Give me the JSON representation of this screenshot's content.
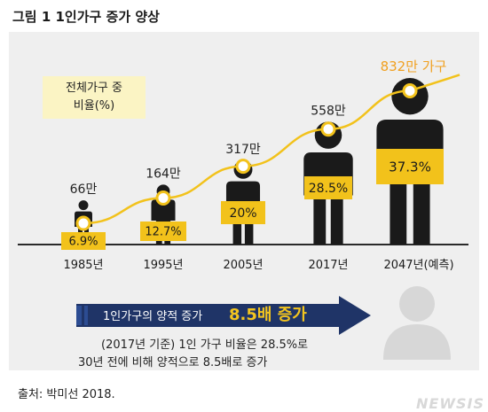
{
  "figure_title": "그림 1  1인가구 증가 양상",
  "legend_label": [
    "전체가구 중",
    "비율(%)"
  ],
  "chart_data": {
    "type": "line",
    "title": "그림 1  1인가구 증가 양상",
    "categories": [
      "1985년",
      "1995년",
      "2005년",
      "2017년",
      "2047년(예측)"
    ],
    "series": [
      {
        "name": "전체가구 중 비율(%)",
        "values": [
          6.9,
          12.7,
          20,
          28.5,
          37.3
        ],
        "labels": [
          "6.9%",
          "12.7%",
          "20%",
          "28.5%",
          "37.3%"
        ]
      }
    ],
    "households": [
      66,
      164,
      317,
      558,
      832
    ],
    "household_labels": [
      "66만",
      "164만",
      "317만",
      "558만",
      "832만 가구"
    ],
    "ylim": [
      0,
      50
    ],
    "colors": {
      "line": "#f2c21b",
      "label_box": "#f2c21b",
      "figure": "#1a1a1a",
      "highlight_text": "#f0a020"
    }
  },
  "arrow_text": "1인가구의 양적 증가",
  "arrow_emphasis": "8.5배 증가",
  "note_lines": [
    "(2017년 기준) 1인 가구 비율은 28.5%로",
    "30년 전에 비해 양적으로 8.5배로 증가"
  ],
  "source": "출처: 박미선 2018.",
  "watermark": "NEWSIS"
}
